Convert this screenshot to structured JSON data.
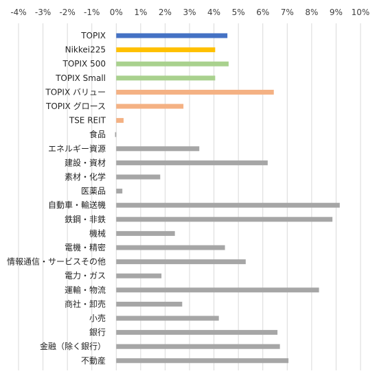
{
  "chart_data": {
    "type": "bar",
    "orientation": "horizontal",
    "title": "",
    "xlabel": "",
    "ylabel": "",
    "xlim": [
      -4,
      10
    ],
    "x_ticks": [
      -4,
      -3,
      -2,
      -1,
      0,
      1,
      2,
      3,
      4,
      5,
      6,
      7,
      8,
      9,
      10
    ],
    "x_tick_labels": [
      "-4%",
      "-3%",
      "-2%",
      "-1%",
      "0%",
      "1%",
      "2%",
      "3%",
      "4%",
      "5%",
      "6%",
      "7%",
      "8%",
      "9%",
      "10%"
    ],
    "x_axis_position": "top",
    "grid": true,
    "legend": "none",
    "unit": "%",
    "categories": [
      "TOPIX",
      "Nikkei225",
      "TOPIX 500",
      "TOPIX Small",
      "TOPIX バリュー",
      "TOPIX グロース",
      "TSE REIT",
      "食品",
      "エネルギー資源",
      "建設・資材",
      "素材・化学",
      "医薬品",
      "自動車・輸送機",
      "鉄鋼・非鉄",
      "機械",
      "電機・精密",
      "情報通信・サービスその他",
      "電力・ガス",
      "運輸・物流",
      "商社・卸売",
      "小売",
      "銀行",
      "金融（除く銀行）",
      "不動産"
    ],
    "values": [
      4.55,
      4.05,
      4.6,
      4.05,
      6.45,
      2.75,
      0.3,
      -0.05,
      3.4,
      6.2,
      1.8,
      0.25,
      9.15,
      8.85,
      2.4,
      4.45,
      5.3,
      1.85,
      8.3,
      2.7,
      4.2,
      6.6,
      6.7,
      7.05
    ],
    "bar_colors": [
      "#4472c4",
      "#ffc000",
      "#a9d18e",
      "#a9d18e",
      "#f4b183",
      "#f4b183",
      "#f4b183",
      "#a6a6a6",
      "#a6a6a6",
      "#a6a6a6",
      "#a6a6a6",
      "#a6a6a6",
      "#a6a6a6",
      "#a6a6a6",
      "#a6a6a6",
      "#a6a6a6",
      "#a6a6a6",
      "#a6a6a6",
      "#a6a6a6",
      "#a6a6a6",
      "#a6a6a6",
      "#a6a6a6",
      "#a6a6a6",
      "#a6a6a6"
    ]
  }
}
